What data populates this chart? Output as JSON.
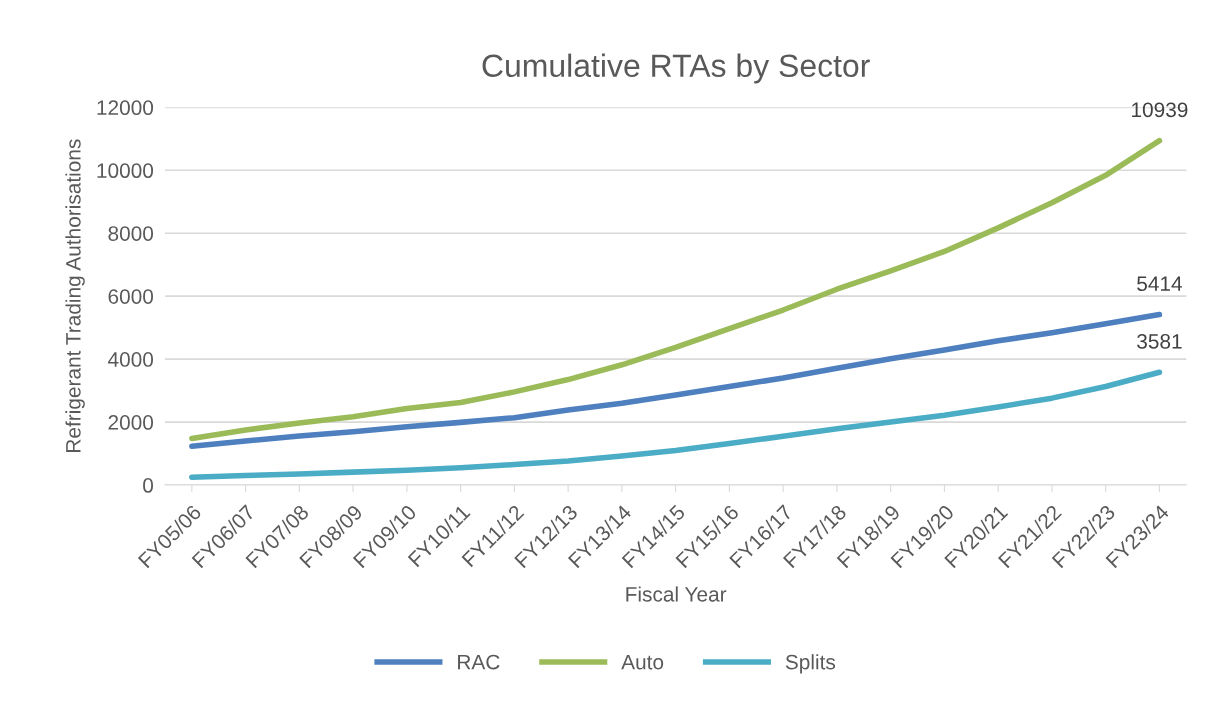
{
  "chart_data": {
    "type": "line",
    "title": "Cumulative RTAs by Sector",
    "xlabel": "Fiscal Year",
    "ylabel": "Refrigerant Trading Authorisations",
    "categories": [
      "FY05/06",
      "FY06/07",
      "FY07/08",
      "FY08/09",
      "FY09/10",
      "FY10/11",
      "FY11/12",
      "FY12/13",
      "FY13/14",
      "FY14/15",
      "FY15/16",
      "FY16/17",
      "FY17/18",
      "FY18/19",
      "FY19/20",
      "FY20/21",
      "FY21/22",
      "FY22/23",
      "FY23/24"
    ],
    "series": [
      {
        "name": "RAC",
        "color": "#4e7fbf",
        "values": [
          1230,
          1400,
          1560,
          1690,
          1850,
          1990,
          2140,
          2380,
          2600,
          2860,
          3130,
          3400,
          3710,
          4010,
          4290,
          4580,
          4840,
          5120,
          5414
        ],
        "value_labels": [
          null,
          null,
          null,
          null,
          null,
          null,
          null,
          null,
          null,
          null,
          null,
          null,
          null,
          null,
          null,
          null,
          null,
          null,
          "5414"
        ]
      },
      {
        "name": "Auto",
        "color": "#9bbb59",
        "values": [
          1480,
          1750,
          1970,
          2170,
          2430,
          2620,
          2960,
          3350,
          3820,
          4370,
          4970,
          5560,
          6220,
          6800,
          7420,
          8170,
          8970,
          9840,
          10939
        ],
        "value_labels": [
          null,
          null,
          null,
          null,
          null,
          null,
          null,
          null,
          null,
          null,
          null,
          null,
          null,
          null,
          null,
          null,
          null,
          null,
          "10939"
        ]
      },
      {
        "name": "Splits",
        "color": "#4bacc6",
        "values": [
          250,
          300,
          350,
          410,
          470,
          550,
          650,
          760,
          920,
          1100,
          1320,
          1550,
          1790,
          2000,
          2220,
          2480,
          2760,
          3130,
          3581
        ],
        "value_labels": [
          null,
          null,
          null,
          null,
          null,
          null,
          null,
          null,
          null,
          null,
          null,
          null,
          null,
          null,
          null,
          null,
          null,
          null,
          "3581"
        ]
      }
    ],
    "ylim": [
      0,
      12000
    ],
    "yticks": [
      0,
      2000,
      4000,
      6000,
      8000,
      10000,
      12000
    ],
    "grid": "y",
    "legend": "bottom",
    "marker": "none",
    "line_style": "solid"
  }
}
